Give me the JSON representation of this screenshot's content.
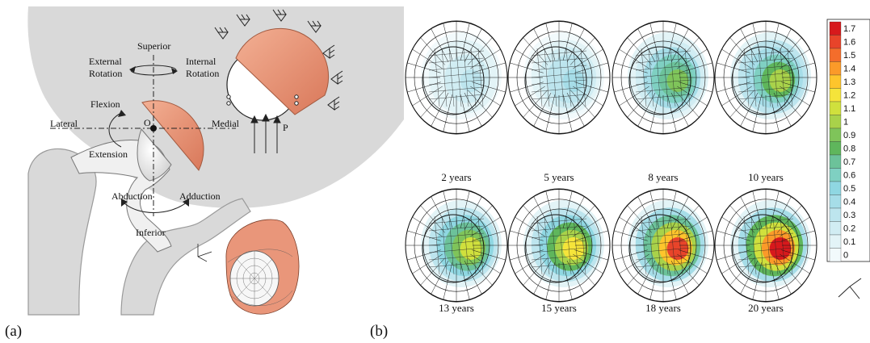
{
  "panel_a": {
    "label": "(a)",
    "directions": {
      "superior": "Superior",
      "inferior": "Inferior",
      "lateral": "Lateral",
      "medial": "Medial"
    },
    "rotations": {
      "external": [
        "External",
        "Rotation"
      ],
      "internal": [
        "Internal",
        "Rotation"
      ]
    },
    "motions": {
      "flexion": "Flexion",
      "extension": "Extension",
      "abduction": "Abduction",
      "adduction": "Adduction"
    },
    "origin": "O",
    "load": "P",
    "colors": {
      "cartilage": "#e9967a",
      "bone": "#d9d9d9",
      "head": "#eeeeee"
    }
  },
  "panel_b": {
    "label": "(b)",
    "ages": [
      "2 years",
      "5 years",
      "8 years",
      "10 years",
      "13 years",
      "15 years",
      "18 years",
      "20 years"
    ],
    "peak_levels": [
      0.3,
      0.4,
      0.9,
      1.0,
      1.1,
      1.2,
      1.6,
      1.7
    ],
    "colorbar": {
      "labels": [
        "1.7",
        "1.6",
        "1.5",
        "1.4",
        "1.3",
        "1.2",
        "1.1",
        "1",
        "0.9",
        "0.8",
        "0.7",
        "0.6",
        "0.5",
        "0.4",
        "0.3",
        "0.2",
        "0.1",
        "0"
      ],
      "colors": [
        "#d7191c",
        "#e8442a",
        "#f46d2b",
        "#fb9a29",
        "#fec52c",
        "#f5e43a",
        "#d0e03d",
        "#a9d24a",
        "#7fc45a",
        "#5fb65c",
        "#6cc29a",
        "#7fd0c2",
        "#8fd7e2",
        "#a6dde8",
        "#bde5ee",
        "#d1edf3",
        "#e3f4f7",
        "#f2fafc"
      ]
    }
  }
}
